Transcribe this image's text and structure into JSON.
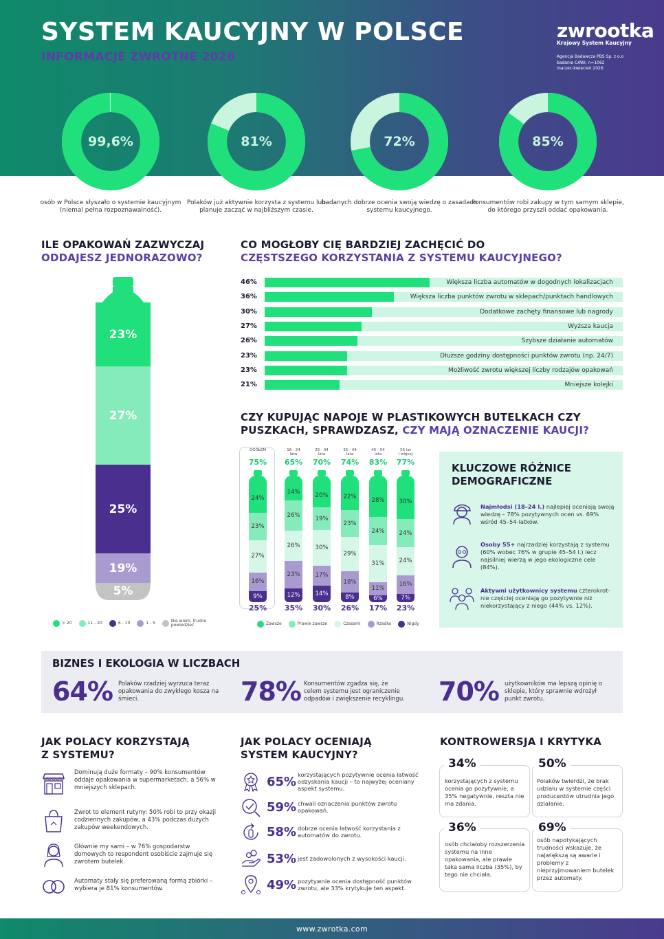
{
  "header": {
    "title": "SYSTEM KAUCYJNY W POLSCE",
    "subtitle": "INFORMACJE ZWROTNE 2026",
    "logo": "zwrootka",
    "logo_sub": "Krajowy System Kaucyjny",
    "agency": [
      "Agencja Badawcza PBS Sp. z o.o",
      "badanie CAWI, n=1062",
      "marzec-kwiecień 2026"
    ]
  },
  "donuts": [
    {
      "label": "99,6%",
      "value": 99.6,
      "caption": "osób w Polsce słyszało o systemie kaucyjnym (niemal pełna rozpoznawalność)."
    },
    {
      "label": "81%",
      "value": 81,
      "caption": "Polaków już aktywnie korzysta z systemu lub planuje zacząć w najbliższym czasie."
    },
    {
      "label": "72%",
      "value": 72,
      "caption": "badanych dobrze ocenia swoją wiedzę o zasadach systemu kaucyjnego."
    },
    {
      "label": "85%",
      "value": 85,
      "caption": "konsumentów robi zakupy w tym samym sklepie, do którego przyszli oddać opakowania."
    }
  ],
  "packages": {
    "title_line1": "ILE OPAKOWAŃ ZAZWYCZAJ",
    "title_line2": "ODDAJESZ JEDNORAZOWO?",
    "segments": [
      {
        "label": "23%",
        "value": 23,
        "color": "#1fe07a"
      },
      {
        "label": "27%",
        "value": 27,
        "color": "#86ebbb"
      },
      {
        "label": "25%",
        "value": 25,
        "color": "#4a2f8e"
      },
      {
        "label": "19%",
        "value": 19,
        "color": "#a99bd0"
      },
      {
        "label": "5%",
        "value": 5,
        "color": "#c3c3c3"
      }
    ],
    "legend": [
      {
        "label": "> 20",
        "color": "#1fe07a"
      },
      {
        "label": "11 - 20",
        "color": "#86ebbb"
      },
      {
        "label": "6 - 10",
        "color": "#4a2f8e"
      },
      {
        "label": "1 - 5",
        "color": "#a99bd0"
      },
      {
        "label": "Nie wiem, trudno powiedzieć",
        "color": "#c3c3c3"
      }
    ]
  },
  "incentives": {
    "title_line1": "CO MOGŁOBY CIĘ BARDZIEJ ZACHĘCIĆ DO",
    "title_line2": "CZĘSTSZEGO KORZYSTANIA Z SYSTEMU KAUCYJNEGO?",
    "rows": [
      {
        "pct": "46%",
        "value": 46,
        "label": "Większa liczba automatów w dogodnych lokalizacjach"
      },
      {
        "pct": "36%",
        "value": 36,
        "label": "Większa liczba punktów zwrotu w sklepach/punktach handlowych"
      },
      {
        "pct": "30%",
        "value": 30,
        "label": "Dodatkowe zachęty finansowe lub nagrody"
      },
      {
        "pct": "27%",
        "value": 27,
        "label": "Wyższa kaucja"
      },
      {
        "pct": "26%",
        "value": 26,
        "label": "Szybsze działanie automatów"
      },
      {
        "pct": "23%",
        "value": 23,
        "label": "Dłuższe godziny dostępności punktów zwrotu (np. 24/7)"
      },
      {
        "pct": "23%",
        "value": 23,
        "label": "Możliwość zwrotu większej liczby rodzajów opakowań"
      },
      {
        "pct": "21%",
        "value": 21,
        "label": "Mniejsze kolejki"
      }
    ]
  },
  "label_check": {
    "title_line1": "CZY KUPUJĄC NAPOJE W PLASTIKOWYCH BUTELKACH CZY",
    "title_line2a": "PUSZKACH, SPRAWDZASZ, ",
    "title_line2b": "CZY MAJĄ OZNACZENIE KAUCJI?",
    "groups": [
      {
        "name": "OGÓŁEM",
        "name2": "",
        "top": "75%",
        "bottom": "25%",
        "segs": [
          [
            "24%",
            24
          ],
          [
            "23%",
            23
          ],
          [
            "27%",
            27
          ],
          [
            "16%",
            16
          ],
          [
            "9%",
            9
          ]
        ]
      },
      {
        "name": "18 - 24",
        "name2": "lata",
        "top": "65%",
        "bottom": "35%",
        "segs": [
          [
            "14%",
            14
          ],
          [
            "26%",
            26
          ],
          [
            "26%",
            26
          ],
          [
            "23%",
            23
          ],
          [
            "12%",
            12
          ]
        ]
      },
      {
        "name": "25 - 34",
        "name2": "lata",
        "top": "70%",
        "bottom": "30%",
        "segs": [
          [
            "20%",
            20
          ],
          [
            "19%",
            19
          ],
          [
            "30%",
            30
          ],
          [
            "17%",
            17
          ],
          [
            "14%",
            14
          ]
        ]
      },
      {
        "name": "35 - 44",
        "name2": "lata",
        "top": "74%",
        "bottom": "26%",
        "segs": [
          [
            "22%",
            22
          ],
          [
            "23%",
            23
          ],
          [
            "29%",
            29
          ],
          [
            "18%",
            18
          ],
          [
            "8%",
            8
          ]
        ]
      },
      {
        "name": "45 - 54",
        "name2": "lata",
        "top": "83%",
        "bottom": "17%",
        "segs": [
          [
            "28%",
            28
          ],
          [
            "24%",
            24
          ],
          [
            "31%",
            31
          ],
          [
            "11%",
            11
          ],
          [
            "6%",
            6
          ]
        ]
      },
      {
        "name": "55 lat",
        "name2": "i więcej",
        "top": "77%",
        "bottom": "23%",
        "segs": [
          [
            "30%",
            30
          ],
          [
            "24%",
            24
          ],
          [
            "24%",
            24
          ],
          [
            "16%",
            16
          ],
          [
            "7%",
            7
          ]
        ]
      }
    ],
    "colors": [
      "#1fe07a",
      "#86ebbb",
      "#d6f7e8",
      "#a99bd0",
      "#4a2f8e"
    ],
    "legend": [
      {
        "label": "Zawsze",
        "color": "#1fe07a"
      },
      {
        "label": "Prawie zawsze",
        "color": "#86ebbb"
      },
      {
        "label": "Czasami",
        "color": "#d6f7e8"
      },
      {
        "label": "Rzadko",
        "color": "#a99bd0"
      },
      {
        "label": "Nigdy",
        "color": "#4a2f8e"
      }
    ]
  },
  "key_differences": {
    "title_line1": "KLUCZOWE RÓŻNICE",
    "title_line2": "DEMOGRAFICZNE",
    "items": [
      {
        "bold": "Najmłodsi (18–24 l.)",
        "text": " najlepiej oceniają swoją wiedzę – 78% pozytywnych ocen vs. 69% wśród 45–54-latków.",
        "icon": "young-person-icon"
      },
      {
        "bold": "Osoby 55+",
        "text": " najrzadziej korzystają z systemu (60% wobec 76% w grupie 45–54 l.) lecz najsilniej wierzą w jego ekologiczne cele (84%).",
        "icon": "senior-person-icon"
      },
      {
        "bold": "Aktywni użytkownicy systemu",
        "text": " czterokrot-nie częściej oceniają go pozytywnie niż niekorzystający z niego (44% vs. 12%).",
        "icon": "group-icon"
      }
    ]
  },
  "business": {
    "title": "BIZNES I EKOLOGIA W LICZBACH",
    "items": [
      {
        "num": "64%",
        "text": "Polaków rzadziej wyrzuca teraz opakowania do zwykłego kosza na śmieci."
      },
      {
        "num": "78%",
        "text": "Konsumentów zgadza się, że celem systemu jest ograniczenie odpadów i zwiększenie recyklingu."
      },
      {
        "num": "70%",
        "text": "użytkowników ma lepszą opinię o sklepie, który sprawnie wdrożył punkt zwrotu."
      }
    ]
  },
  "usage": {
    "title_line1": "JAK POLACY KORZYSTAJĄ",
    "title_line2": "Z SYSTEMU?",
    "items": [
      {
        "icon": "store-icon",
        "text": "Dominują duże formaty – 90% konsumentów oddaje opakowania w supermarketach, a 56% w mniejszych sklepach."
      },
      {
        "icon": "shopping-bag-icon",
        "text": "Zwrot to element rutyny: 50% robi to przy okazji codziennych zakupów, a 43% podczas dużych zakupów weekendowych."
      },
      {
        "icon": "person-icon",
        "text": "Głównie my sami – w 76% gospodarstw domowych to respondent osobiście zajmuje się zwrotem butelek."
      },
      {
        "icon": "loop-icon",
        "text": "Automaty stały się preferowaną formą zbiórki – wybiera je 81% konsumentów."
      }
    ]
  },
  "evaluation": {
    "title_line1": "JAK POLACY OCENIAJĄ",
    "title_line2": "SYSTEM KAUCYJNY?",
    "items": [
      {
        "icon": "award-icon",
        "pct": "65%",
        "text": "korzystających pozytywnie ocenia łatwość odzyskania kaucji – to najwyżej oceniany aspekt systemu."
      },
      {
        "icon": "label-check-icon",
        "pct": "59%",
        "text": "chwali oznaczenia punktów zwrotu opakowań."
      },
      {
        "icon": "bottle-return-icon",
        "pct": "58%",
        "text": "dobrze ocenia łatwość korzystania z automatów do zwrotu."
      },
      {
        "icon": "hand-coins-icon",
        "pct": "53%",
        "text": "jest zadowolonych z wysokości kaucji."
      },
      {
        "icon": "location-icon",
        "pct": "49%",
        "text": "pozytywnie ocenia dostępność punktów zwrotu, ale 33% krytykuje ten aspekt."
      }
    ]
  },
  "controversy": {
    "title": "KONTROWERSJA I KRYTYKA",
    "cards": [
      {
        "num": "34%",
        "text": "korzystających z systemu ocenia go pozytywnie, a 35% negatywnie, reszta nie ma zdania."
      },
      {
        "num": "50%",
        "text": "Polaków twierdzi, że brak udziału w systemie części producentów utrudnia jego działanie."
      },
      {
        "num": "36%",
        "text": "osób chciałoby rozszerzenia systemu na inne opakowania, ale prawie taka sama liczba (35%), by tego nie chciała."
      },
      {
        "num": "69%",
        "text": "osób napotykających trudności wskazuje, że największą są awarie i problemy z nieprzyjmowaniem butelek przez automaty."
      }
    ]
  },
  "footer": {
    "url": "www.zwrotka.com"
  }
}
